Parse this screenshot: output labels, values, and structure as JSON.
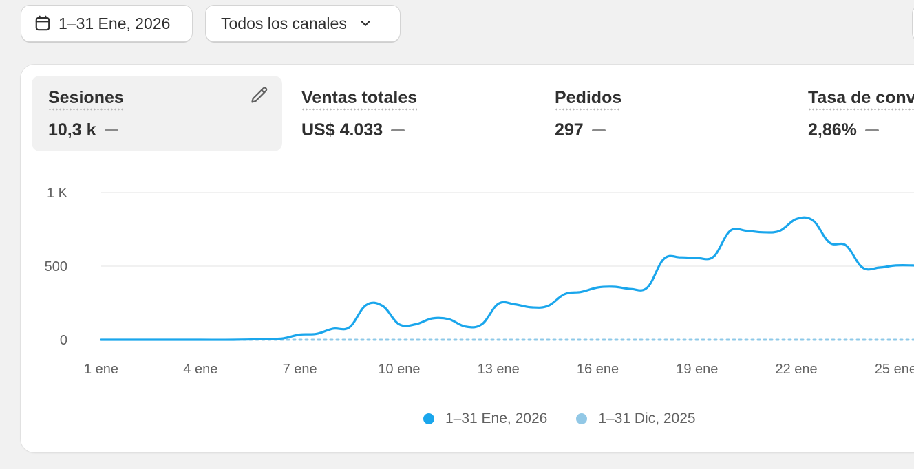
{
  "toolbar": {
    "date_label": "1–31 Ene, 2026",
    "channel_label": "Todos los canales"
  },
  "metrics": [
    {
      "label": "Sesiones",
      "value": "10,3 k",
      "active": true
    },
    {
      "label": "Ventas totales",
      "value": "US$ 4.033",
      "active": false
    },
    {
      "label": "Pedidos",
      "value": "297",
      "active": false
    },
    {
      "label": "Tasa de conv",
      "value": "2,86%",
      "active": false
    }
  ],
  "colors": {
    "current": "#1aa6ec",
    "previous": "#8ec9e8",
    "grid": "#e3e3e3",
    "axis_text": "#616161"
  },
  "legend": [
    {
      "label": "1–31 Ene, 2026",
      "color": "#1aa6ec"
    },
    {
      "label": "1–31 Dic, 2025",
      "color": "#92c8e6"
    }
  ],
  "chart_data": {
    "type": "line",
    "y_ticks": [
      {
        "value": 1000,
        "label": "1 K"
      },
      {
        "value": 500,
        "label": "500"
      },
      {
        "value": 0,
        "label": "0"
      }
    ],
    "x_ticks": [
      {
        "day": 1,
        "label": "1 ene"
      },
      {
        "day": 4,
        "label": "4 ene"
      },
      {
        "day": 7,
        "label": "7 ene"
      },
      {
        "day": 10,
        "label": "10 ene"
      },
      {
        "day": 13,
        "label": "13 ene"
      },
      {
        "day": 16,
        "label": "16 ene"
      },
      {
        "day": 19,
        "label": "19 ene"
      },
      {
        "day": 22,
        "label": "22 ene"
      },
      {
        "day": 25,
        "label": "25 ene"
      }
    ],
    "ylim": [
      0,
      1000
    ],
    "grid": true,
    "legend_position": "bottom-center",
    "series": [
      {
        "name": "1–31 Ene, 2026",
        "style": "solid",
        "x": [
          1,
          2,
          3,
          4,
          5,
          6,
          6.5,
          7,
          7.5,
          8,
          8.5,
          9,
          9.5,
          10,
          10.5,
          11,
          11.5,
          12,
          12.5,
          13,
          13.5,
          14,
          14.5,
          15,
          15.5,
          16,
          16.5,
          17,
          17.5,
          18,
          18.5,
          19,
          19.5,
          20,
          20.5,
          21,
          21.5,
          22,
          22.5,
          23,
          23.5,
          24,
          24.5,
          25,
          25.5,
          26
        ],
        "y": [
          0,
          0,
          0,
          0,
          0,
          5,
          10,
          35,
          40,
          75,
          85,
          235,
          230,
          105,
          105,
          145,
          140,
          90,
          105,
          245,
          240,
          220,
          230,
          310,
          325,
          355,
          360,
          345,
          355,
          550,
          560,
          555,
          565,
          740,
          740,
          730,
          740,
          820,
          810,
          660,
          640,
          490,
          490,
          505,
          505,
          500
        ]
      },
      {
        "name": "1–31 Dic, 2025",
        "style": "dotted",
        "x": [
          1,
          26
        ],
        "y": [
          0,
          0
        ]
      }
    ]
  }
}
